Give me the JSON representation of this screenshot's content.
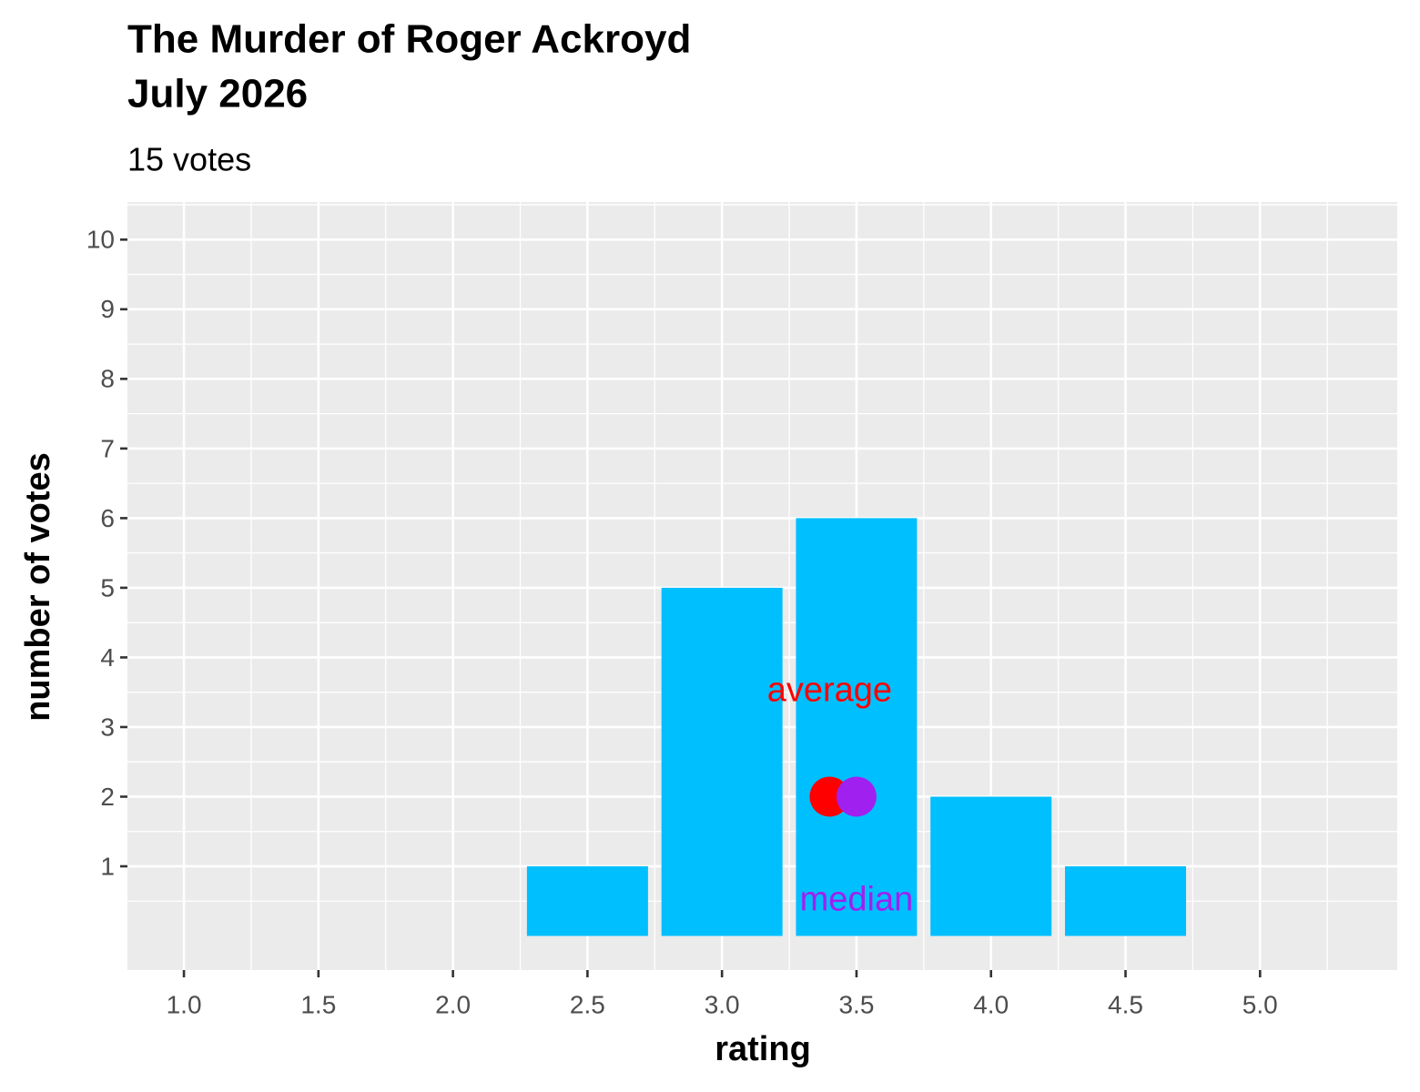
{
  "chart_data": {
    "type": "bar",
    "title": [
      "The Murder of Roger Ackroyd",
      "July 2026"
    ],
    "subtitle": "15 votes",
    "x_label": "rating",
    "y_label": "number of votes",
    "x": [
      2.5,
      3.0,
      3.5,
      4.0,
      4.5
    ],
    "values": [
      1,
      5,
      6,
      2,
      1
    ],
    "color": "#00bfff",
    "bar_width": 0.45,
    "markers": [
      {
        "label": "average",
        "x": 3.4,
        "y": 2,
        "label_y": 3.5,
        "color": "#ff0000"
      },
      {
        "label": "median",
        "x": 3.5,
        "y": 2,
        "label_y": 0.5,
        "color": "#a020f0"
      }
    ],
    "xlim": [
      0.79,
      5.51
    ],
    "xticks": [
      {
        "value": 1,
        "label": "1.0"
      },
      1.5,
      {
        "value": 2,
        "label": "2.0"
      },
      2.5,
      {
        "value": 3,
        "label": "3.0"
      },
      3.5,
      {
        "value": 4,
        "label": "4.0"
      },
      4.5,
      {
        "value": 5,
        "label": "5.0"
      }
    ],
    "ylim": [
      -0.49,
      10.54
    ],
    "yticks": [
      1,
      2,
      3,
      4,
      5,
      6,
      7,
      8,
      9,
      10
    ],
    "grid": true
  }
}
